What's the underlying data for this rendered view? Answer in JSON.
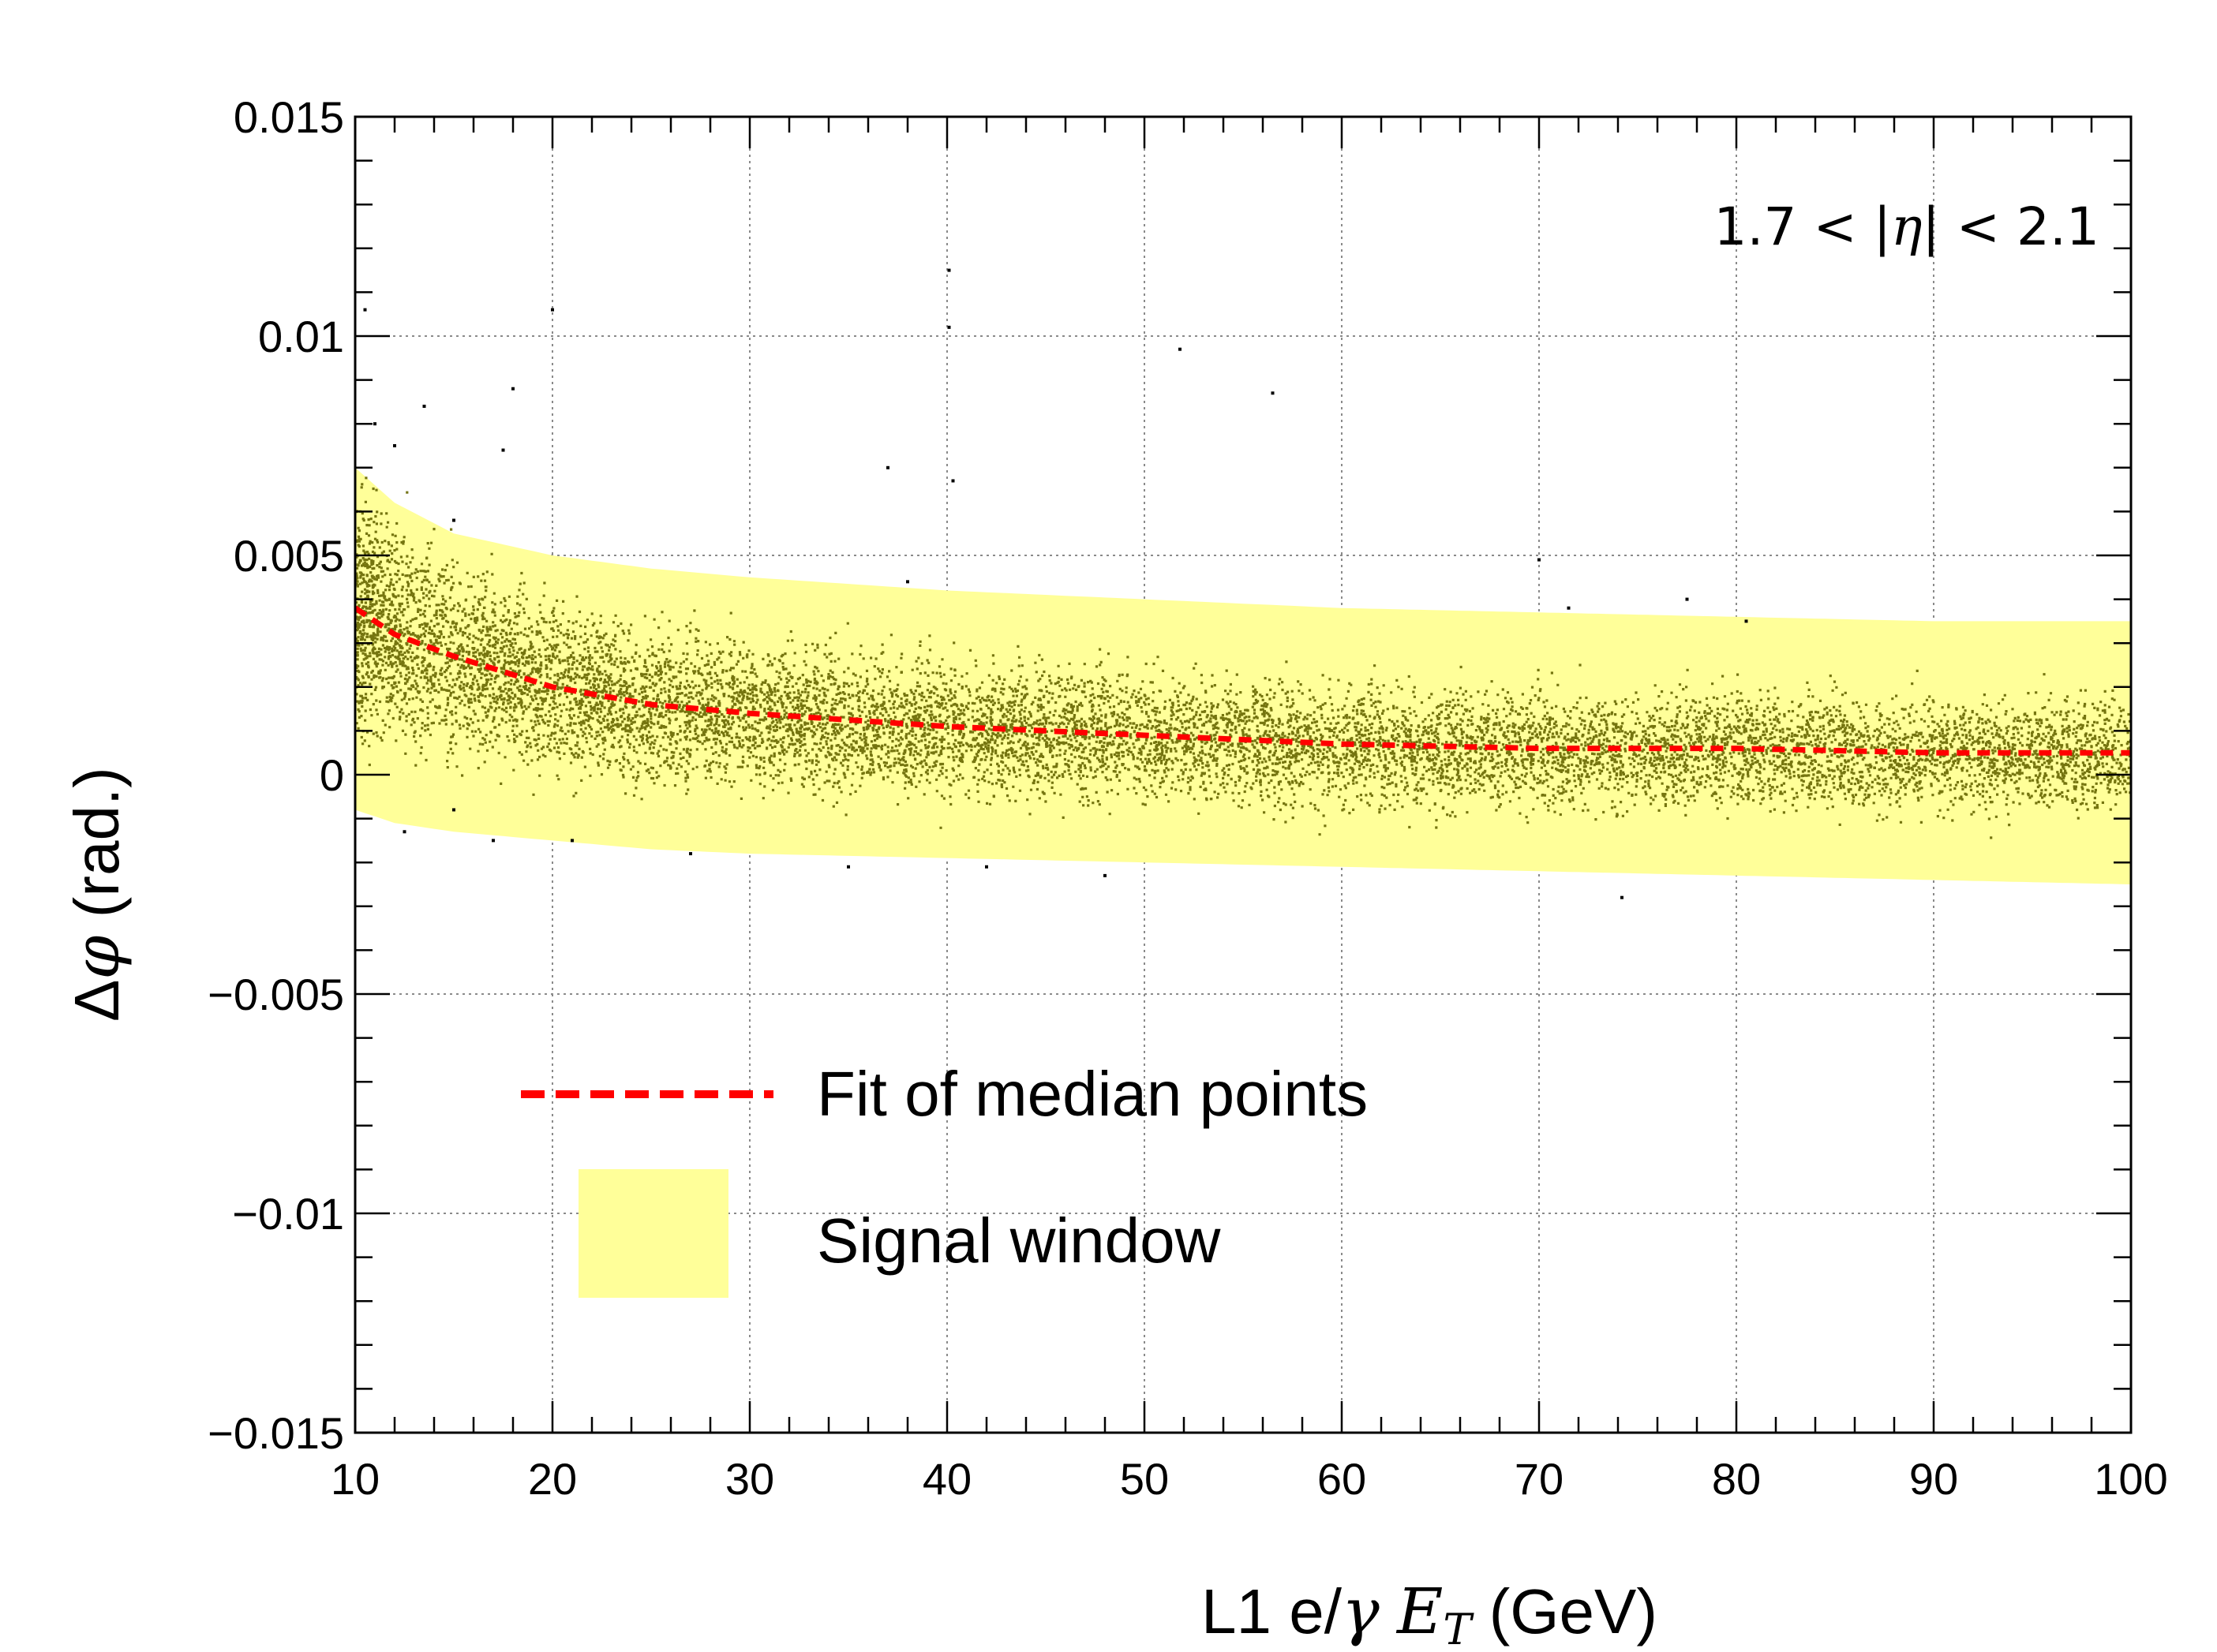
{
  "chart_data": {
    "type": "scatter",
    "xlabel": {
      "prefix": "L1 e/",
      "gamma": "γ",
      "et": "E",
      "sub": "T",
      "suffix": " (GeV)"
    },
    "ylabel": {
      "delta": "Δ",
      "phi": "φ",
      "suffix": " (rad.)"
    },
    "xlim": [
      10,
      100
    ],
    "ylim": [
      -0.015,
      0.015
    ],
    "x_ticks": [
      10,
      20,
      30,
      40,
      50,
      60,
      70,
      80,
      90,
      100
    ],
    "x_tick_labels": [
      "10",
      "20",
      "30",
      "40",
      "50",
      "60",
      "70",
      "80",
      "90",
      "100"
    ],
    "y_ticks": [
      -0.015,
      -0.01,
      -0.005,
      0,
      0.005,
      0.01,
      0.015
    ],
    "y_tick_labels": [
      "−0.015",
      "−0.01",
      "−0.005",
      "0",
      "0.005",
      "0.01",
      "0.015"
    ],
    "grid": true,
    "region_label": {
      "left": "1.7 < |",
      "eta": "η",
      "right": "| < 2.1"
    },
    "legend": {
      "position": "bottom-left",
      "entries": [
        {
          "label": "Fit of median points",
          "style": "dashed-line",
          "color": "#ff0000"
        },
        {
          "label": "Signal window",
          "style": "filled-box",
          "color": "#ffff99"
        }
      ]
    },
    "series": [
      {
        "name": "Fit of median points",
        "kind": "line",
        "color": "#ff0000",
        "x": [
          10,
          12,
          15,
          20,
          25,
          30,
          40,
          50,
          60,
          70,
          80,
          90,
          100
        ],
        "y": [
          0.0038,
          0.0032,
          0.0027,
          0.002,
          0.0016,
          0.0014,
          0.0011,
          0.0009,
          0.0007,
          0.0006,
          0.0006,
          0.0005,
          0.0005
        ]
      },
      {
        "name": "Signal window",
        "kind": "band",
        "color": "#ffff99",
        "x": [
          10,
          12,
          15,
          20,
          25,
          30,
          40,
          50,
          60,
          70,
          80,
          90,
          100
        ],
        "upper": [
          0.007,
          0.0062,
          0.0055,
          0.005,
          0.0047,
          0.0045,
          0.0042,
          0.004,
          0.0038,
          0.0037,
          0.0036,
          0.0035,
          0.0035
        ],
        "lower": [
          -0.0008,
          -0.0011,
          -0.0013,
          -0.0015,
          -0.0017,
          -0.0018,
          -0.0019,
          -0.002,
          -0.0021,
          -0.0022,
          -0.0023,
          -0.0024,
          -0.0025
        ]
      },
      {
        "name": "Events",
        "kind": "scatter-density",
        "color": "#666600",
        "center": "follows median fit",
        "half_width": [
          0.0028,
          0.0026,
          0.0023,
          0.002,
          0.0018,
          0.0017,
          0.0016,
          0.0015,
          0.0015,
          0.0014,
          0.0014,
          0.0014,
          0.0014
        ]
      },
      {
        "name": "Outliers",
        "kind": "scatter",
        "color": "#000000",
        "points": [
          [
            10.5,
            0.0106
          ],
          [
            11,
            0.008
          ],
          [
            12,
            0.0075
          ],
          [
            13.5,
            0.0084
          ],
          [
            15,
            0.0058
          ],
          [
            17.5,
            0.0074
          ],
          [
            18,
            0.0088
          ],
          [
            20,
            0.0106
          ],
          [
            37,
            0.007
          ],
          [
            38,
            0.0044
          ],
          [
            40.1,
            0.0115
          ],
          [
            40.1,
            0.0102
          ],
          [
            40.3,
            0.0067
          ],
          [
            51.8,
            0.0097
          ],
          [
            56.5,
            0.0087
          ],
          [
            70,
            0.0049
          ],
          [
            71.5,
            0.0038
          ],
          [
            77.5,
            0.004
          ],
          [
            80.5,
            0.0035
          ],
          [
            12.5,
            -0.0013
          ],
          [
            15,
            -0.0008
          ],
          [
            17,
            -0.0015
          ],
          [
            21,
            -0.0015
          ],
          [
            27,
            -0.0018
          ],
          [
            35,
            -0.0021
          ],
          [
            42,
            -0.0021
          ],
          [
            48,
            -0.0023
          ],
          [
            74.2,
            -0.0028
          ]
        ]
      }
    ]
  }
}
